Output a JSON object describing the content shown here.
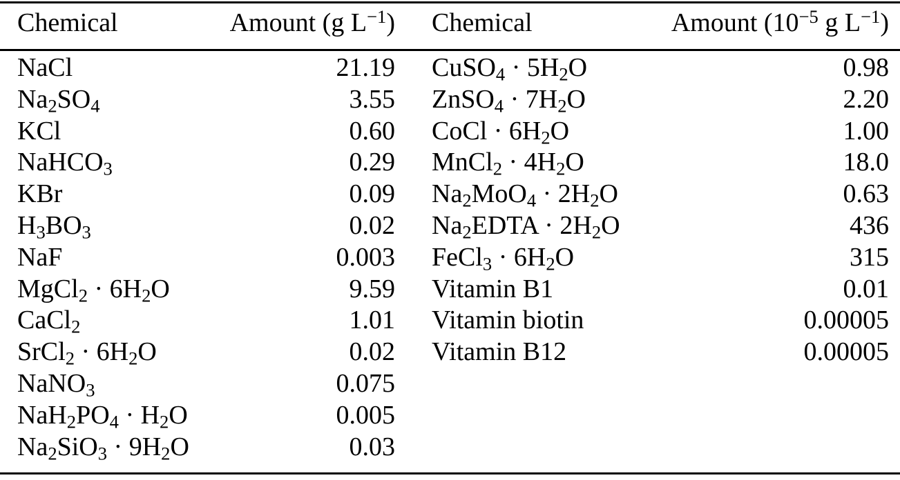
{
  "table": {
    "colors": {
      "text": "#000000",
      "background": "#ffffff",
      "rule": "#000000"
    },
    "headers": {
      "left_chemical": "Chemical",
      "left_amount": "Amount (g L^{−1})",
      "right_chemical": "Chemical",
      "right_amount": "Amount (10^{−5} g L^{−1})"
    },
    "left_rows": [
      {
        "chemical": "NaCl",
        "amount": "21.19"
      },
      {
        "chemical": "Na_{2}SO_{4}",
        "amount": "3.55"
      },
      {
        "chemical": "KCl",
        "amount": "0.60"
      },
      {
        "chemical": "NaHCO_{3}",
        "amount": "0.29"
      },
      {
        "chemical": "KBr",
        "amount": "0.09"
      },
      {
        "chemical": "H_{3}BO_{3}",
        "amount": "0.02"
      },
      {
        "chemical": "NaF",
        "amount": "0.003"
      },
      {
        "chemical": "MgCl_{2} · 6H_{2}O",
        "amount": "9.59"
      },
      {
        "chemical": "CaCl_{2}",
        "amount": "1.01"
      },
      {
        "chemical": "SrCl_{2} · 6H_{2}O",
        "amount": "0.02"
      },
      {
        "chemical": "NaNO_{3}",
        "amount": "0.075"
      },
      {
        "chemical": "NaH_{2}PO_{4} · H_{2}O",
        "amount": "0.005"
      },
      {
        "chemical": "Na_{2}SiO_{3} · 9H_{2}O",
        "amount": "0.03"
      }
    ],
    "right_rows": [
      {
        "chemical": "CuSO_{4} · 5H_{2}O",
        "amount": "0.98"
      },
      {
        "chemical": "ZnSO_{4} · 7H_{2}O",
        "amount": "2.20"
      },
      {
        "chemical": "CoCl · 6H_{2}O",
        "amount": "1.00"
      },
      {
        "chemical": "MnCl_{2} · 4H_{2}O",
        "amount": "18.0"
      },
      {
        "chemical": "Na_{2}MoO_{4} · 2H_{2}O",
        "amount": "0.63"
      },
      {
        "chemical": "Na_{2}EDTA · 2H_{2}O",
        "amount": "436"
      },
      {
        "chemical": "FeCl_{3} · 6H_{2}O",
        "amount": "315"
      },
      {
        "chemical": "Vitamin B1",
        "amount": "0.01"
      },
      {
        "chemical": "Vitamin biotin",
        "amount": "0.00005"
      },
      {
        "chemical": "Vitamin B12",
        "amount": "0.00005"
      }
    ]
  }
}
